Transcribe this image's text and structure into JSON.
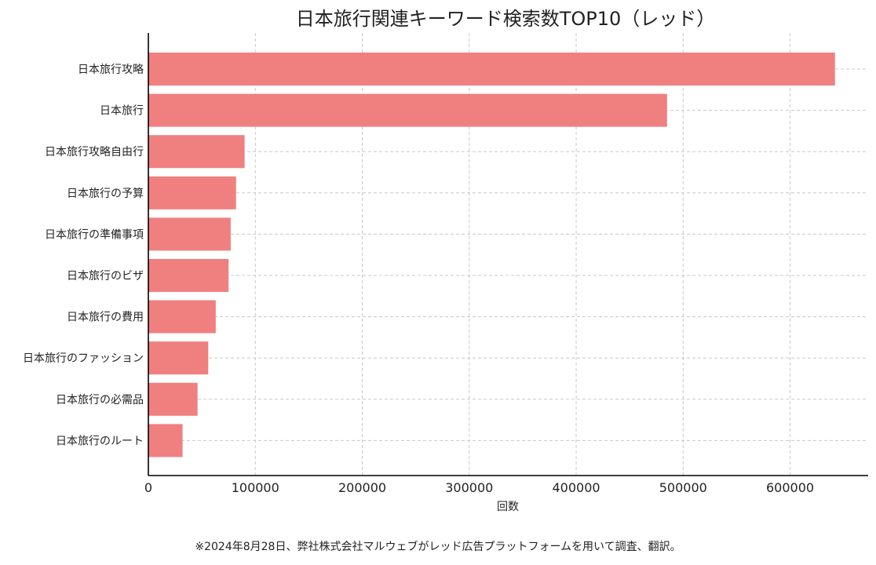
{
  "chart_data": {
    "type": "bar",
    "orientation": "horizontal",
    "title": "日本旅行関連キーワード検索数TOP10（レッド）",
    "xlabel": "回数",
    "ylabel": "",
    "categories": [
      "日本旅行攻略",
      "日本旅行",
      "日本旅行攻略自由行",
      "日本旅行の予算",
      "日本旅行の準備事項",
      "日本旅行のビザ",
      "日本旅行の費用",
      "日本旅行のファッション",
      "日本旅行の必需品",
      "日本旅行のルート"
    ],
    "values": [
      642000,
      485000,
      90000,
      82000,
      77000,
      75000,
      63000,
      56000,
      46000,
      32000
    ],
    "xlim": [
      0,
      673000
    ],
    "xticks": [
      0,
      100000,
      200000,
      300000,
      400000,
      500000,
      600000
    ],
    "grid": true,
    "bar_color": "#f08080"
  },
  "footnote": "※2024年8月28日、弊社株式会社マルウェブがレッド広告プラットフォームを用いて調査、翻訳。"
}
